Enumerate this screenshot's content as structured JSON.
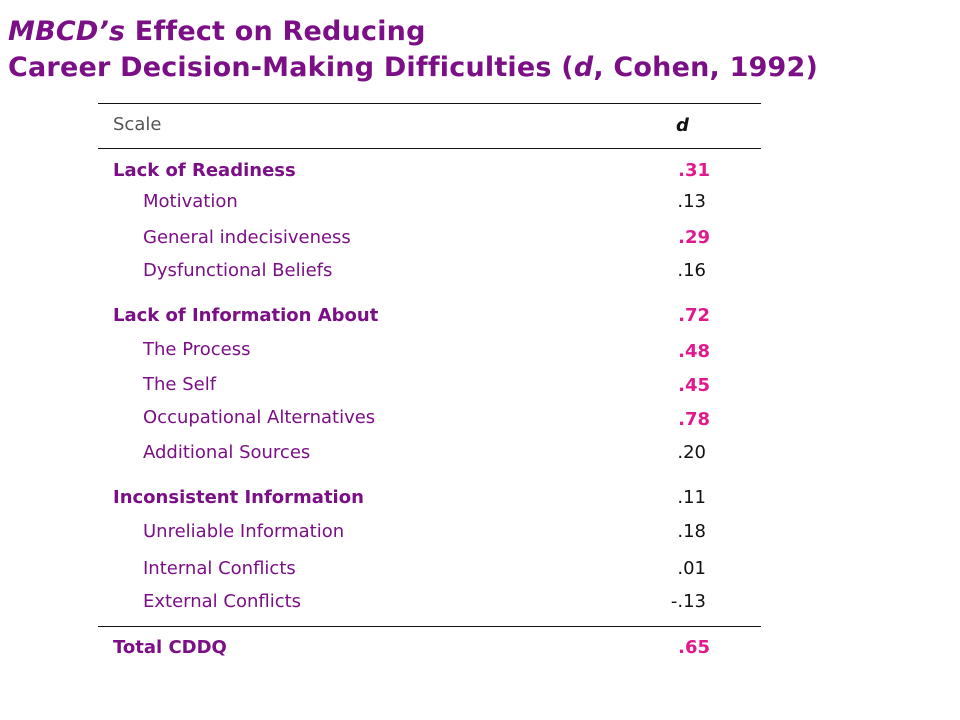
{
  "title": {
    "line1_italic": "MBCD’s",
    "line1_rest": " Effect on Reducing",
    "line2_prefix": "Career Decision-Making Difficulties (",
    "line2_italic": "d",
    "line2_suffix": ", Cohen, 1992)"
  },
  "table": {
    "header": {
      "scale": "Scale",
      "d": "d"
    },
    "rows": [
      {
        "label": "Lack of Readiness",
        "value": ".31"
      },
      {
        "label": "Motivation",
        "value": ".13"
      },
      {
        "label": "General indecisiveness",
        "value": ".29"
      },
      {
        "label": "Dysfunctional Beliefs",
        "value": ".16"
      },
      {
        "label": "Lack of Information About",
        "value": ".72"
      },
      {
        "label": "The Process",
        "value": ".48"
      },
      {
        "label": "The Self",
        "value": ".45"
      },
      {
        "label": "Occupational Alternatives",
        "value": ".78"
      },
      {
        "label": "Additional Sources",
        "value": ".20"
      },
      {
        "label": "Inconsistent Information",
        "value": ".11"
      },
      {
        "label": "Unreliable Information",
        "value": ".18"
      },
      {
        "label": "Internal Conflicts",
        "value": ".01"
      },
      {
        "label": "External Conflicts",
        "value": "-.13"
      },
      {
        "label": "Total CDDQ",
        "value": ".65"
      }
    ]
  },
  "colors": {
    "label": "#7b0f86",
    "highlight_value": "#e01a8c",
    "plain_value": "#111111"
  }
}
